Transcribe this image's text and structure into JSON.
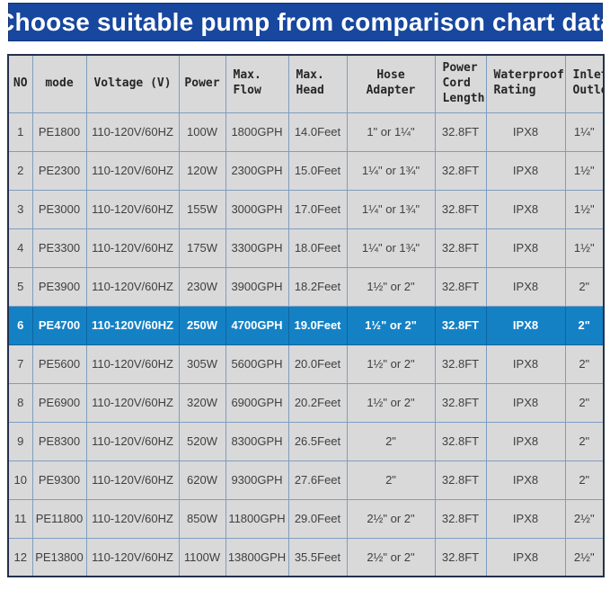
{
  "title": "Choose suitable pump from comparison chart data",
  "colors": {
    "title_bar_blue": "#17479e",
    "highlight_row_blue": "#1581c5",
    "cell_background_gray": "#d9d9d9",
    "grid_line_blue": "#7f9dc0",
    "outer_border_navy": "#23304e",
    "cell_text_gray": "#3f3f3f"
  },
  "chart_data": {
    "type": "table",
    "title": "Choose suitable pump from comparison chart data",
    "highlighted_row_no": 6,
    "columns": [
      {
        "key": "no",
        "label": "NO"
      },
      {
        "key": "mode",
        "label": "mode"
      },
      {
        "key": "voltage",
        "label": "Voltage (V)"
      },
      {
        "key": "power",
        "label": "Power"
      },
      {
        "key": "max_flow",
        "label": "Max.\nFlow"
      },
      {
        "key": "max_head",
        "label": "Max.\nHead"
      },
      {
        "key": "hose_adapter",
        "label": "Hose Adapter"
      },
      {
        "key": "cord_length",
        "label": "Power\nCord\nLength"
      },
      {
        "key": "waterproof",
        "label": "Waterproof\nRating"
      },
      {
        "key": "inlet_outlet",
        "label": "Inlet/\nOutlet"
      }
    ],
    "rows": [
      {
        "no": 1,
        "mode": "PE1800",
        "voltage": "110-120V/60HZ",
        "power": "100W",
        "max_flow": "1800GPH",
        "max_head": "14.0Feet",
        "hose_adapter": "1\" or 1¼\"",
        "cord_length": "32.8FT",
        "waterproof": "IPX8",
        "inlet_outlet": "1¼\""
      },
      {
        "no": 2,
        "mode": "PE2300",
        "voltage": "110-120V/60HZ",
        "power": "120W",
        "max_flow": "2300GPH",
        "max_head": "15.0Feet",
        "hose_adapter": "1¼\" or 1¾\"",
        "cord_length": "32.8FT",
        "waterproof": "IPX8",
        "inlet_outlet": "1½\""
      },
      {
        "no": 3,
        "mode": "PE3000",
        "voltage": "110-120V/60HZ",
        "power": "155W",
        "max_flow": "3000GPH",
        "max_head": "17.0Feet",
        "hose_adapter": "1¼\" or 1¾\"",
        "cord_length": "32.8FT",
        "waterproof": "IPX8",
        "inlet_outlet": "1½\""
      },
      {
        "no": 4,
        "mode": "PE3300",
        "voltage": "110-120V/60HZ",
        "power": "175W",
        "max_flow": "3300GPH",
        "max_head": "18.0Feet",
        "hose_adapter": "1¼\" or 1¾\"",
        "cord_length": "32.8FT",
        "waterproof": "IPX8",
        "inlet_outlet": "1½\""
      },
      {
        "no": 5,
        "mode": "PE3900",
        "voltage": "110-120V/60HZ",
        "power": "230W",
        "max_flow": "3900GPH",
        "max_head": "18.2Feet",
        "hose_adapter": "1½\" or 2\"",
        "cord_length": "32.8FT",
        "waterproof": "IPX8",
        "inlet_outlet": "2\""
      },
      {
        "no": 6,
        "mode": "PE4700",
        "voltage": "110-120V/60HZ",
        "power": "250W",
        "max_flow": "4700GPH",
        "max_head": "19.0Feet",
        "hose_adapter": "1½\" or 2\"",
        "cord_length": "32.8FT",
        "waterproof": "IPX8",
        "inlet_outlet": "2\""
      },
      {
        "no": 7,
        "mode": "PE5600",
        "voltage": "110-120V/60HZ",
        "power": "305W",
        "max_flow": "5600GPH",
        "max_head": "20.0Feet",
        "hose_adapter": "1½\" or 2\"",
        "cord_length": "32.8FT",
        "waterproof": "IPX8",
        "inlet_outlet": "2\""
      },
      {
        "no": 8,
        "mode": "PE6900",
        "voltage": "110-120V/60HZ",
        "power": "320W",
        "max_flow": "6900GPH",
        "max_head": "20.2Feet",
        "hose_adapter": "1½\" or 2\"",
        "cord_length": "32.8FT",
        "waterproof": "IPX8",
        "inlet_outlet": "2\""
      },
      {
        "no": 9,
        "mode": "PE8300",
        "voltage": "110-120V/60HZ",
        "power": "520W",
        "max_flow": "8300GPH",
        "max_head": "26.5Feet",
        "hose_adapter": "2\"",
        "cord_length": "32.8FT",
        "waterproof": "IPX8",
        "inlet_outlet": "2\""
      },
      {
        "no": 10,
        "mode": "PE9300",
        "voltage": "110-120V/60HZ",
        "power": "620W",
        "max_flow": "9300GPH",
        "max_head": "27.6Feet",
        "hose_adapter": "2\"",
        "cord_length": "32.8FT",
        "waterproof": "IPX8",
        "inlet_outlet": "2\""
      },
      {
        "no": 11,
        "mode": "PE11800",
        "voltage": "110-120V/60HZ",
        "power": "850W",
        "max_flow": "11800GPH",
        "max_head": "29.0Feet",
        "hose_adapter": "2½\" or 2\"",
        "cord_length": "32.8FT",
        "waterproof": "IPX8",
        "inlet_outlet": "2½\""
      },
      {
        "no": 12,
        "mode": "PE13800",
        "voltage": "110-120V/60HZ",
        "power": "1100W",
        "max_flow": "13800GPH",
        "max_head": "35.5Feet",
        "hose_adapter": "2½\" or 2\"",
        "cord_length": "32.8FT",
        "waterproof": "IPX8",
        "inlet_outlet": "2½\""
      }
    ]
  }
}
